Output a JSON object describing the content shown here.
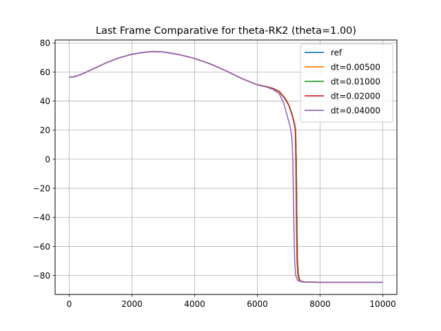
{
  "chart_data": {
    "type": "line",
    "title": "Last Frame Comparative for theta-RK2 (theta=1.00)",
    "xlabel": "",
    "ylabel": "",
    "xlim": [
      -450,
      10450
    ],
    "ylim": [
      -93,
      82
    ],
    "xticks": [
      0,
      2000,
      4000,
      6000,
      8000,
      10000
    ],
    "yticks": [
      -80,
      -60,
      -40,
      -20,
      0,
      20,
      40,
      60,
      80
    ],
    "xtick_labels": [
      "0",
      "2000",
      "4000",
      "6000",
      "8000",
      "10000"
    ],
    "ytick_labels": [
      "−80",
      "−60",
      "−40",
      "−20",
      "0",
      "20",
      "40",
      "60",
      "80"
    ],
    "grid": true,
    "legend_position": "top-right",
    "series": [
      {
        "name": "ref",
        "color": "#1f77b4",
        "points": [
          [
            0,
            56.5
          ],
          [
            150,
            56.6
          ],
          [
            400,
            58.5
          ],
          [
            800,
            62.5
          ],
          [
            1200,
            66.5
          ],
          [
            1600,
            69.8
          ],
          [
            2000,
            72.2
          ],
          [
            2400,
            73.6
          ],
          [
            2700,
            74.1
          ],
          [
            3000,
            73.8
          ],
          [
            3500,
            72.0
          ],
          [
            4000,
            69.3
          ],
          [
            4500,
            65.5
          ],
          [
            5000,
            60.8
          ],
          [
            5500,
            55.5
          ],
          [
            6000,
            51.2
          ],
          [
            6300,
            49.9
          ],
          [
            6500,
            48.7
          ],
          [
            6700,
            46.6
          ],
          [
            6900,
            41.5
          ],
          [
            7000,
            37.5
          ],
          [
            7100,
            31.5
          ],
          [
            7180,
            25.0
          ],
          [
            7220,
            20.0
          ],
          [
            7240,
            0
          ],
          [
            7260,
            -40
          ],
          [
            7280,
            -70
          ],
          [
            7310,
            -80
          ],
          [
            7360,
            -83.5
          ],
          [
            7500,
            -84.5
          ],
          [
            8000,
            -84.6
          ],
          [
            10000,
            -84.6
          ]
        ]
      },
      {
        "name": "dt=0.00500",
        "color": "#ff7f0e",
        "points": [
          [
            0,
            56.5
          ],
          [
            150,
            56.6
          ],
          [
            400,
            58.5
          ],
          [
            800,
            62.5
          ],
          [
            1200,
            66.5
          ],
          [
            1600,
            69.8
          ],
          [
            2000,
            72.2
          ],
          [
            2400,
            73.6
          ],
          [
            2700,
            74.1
          ],
          [
            3000,
            73.8
          ],
          [
            3500,
            72.0
          ],
          [
            4000,
            69.3
          ],
          [
            4500,
            65.5
          ],
          [
            5000,
            60.8
          ],
          [
            5500,
            55.5
          ],
          [
            6000,
            51.2
          ],
          [
            6300,
            49.9
          ],
          [
            6500,
            48.7
          ],
          [
            6700,
            46.6
          ],
          [
            6900,
            41.5
          ],
          [
            7000,
            37.5
          ],
          [
            7100,
            31.5
          ],
          [
            7180,
            25.0
          ],
          [
            7220,
            20.0
          ],
          [
            7240,
            0
          ],
          [
            7260,
            -40
          ],
          [
            7280,
            -70
          ],
          [
            7310,
            -80
          ],
          [
            7360,
            -83.5
          ],
          [
            7500,
            -84.5
          ],
          [
            8000,
            -84.6
          ],
          [
            10000,
            -84.6
          ]
        ]
      },
      {
        "name": "dt=0.01000",
        "color": "#2ca02c",
        "points": [
          [
            0,
            56.5
          ],
          [
            150,
            56.6
          ],
          [
            400,
            58.5
          ],
          [
            800,
            62.5
          ],
          [
            1200,
            66.5
          ],
          [
            1600,
            69.8
          ],
          [
            2000,
            72.2
          ],
          [
            2400,
            73.6
          ],
          [
            2700,
            74.1
          ],
          [
            3000,
            73.8
          ],
          [
            3500,
            72.0
          ],
          [
            4000,
            69.3
          ],
          [
            4500,
            65.5
          ],
          [
            5000,
            60.8
          ],
          [
            5500,
            55.5
          ],
          [
            6000,
            51.2
          ],
          [
            6300,
            49.9
          ],
          [
            6500,
            48.7
          ],
          [
            6700,
            46.6
          ],
          [
            6900,
            41.5
          ],
          [
            7000,
            37.5
          ],
          [
            7100,
            31.5
          ],
          [
            7180,
            25.0
          ],
          [
            7220,
            20.0
          ],
          [
            7240,
            0
          ],
          [
            7260,
            -40
          ],
          [
            7280,
            -70
          ],
          [
            7310,
            -80
          ],
          [
            7360,
            -83.5
          ],
          [
            7500,
            -84.5
          ],
          [
            8000,
            -84.6
          ],
          [
            10000,
            -84.6
          ]
        ]
      },
      {
        "name": "dt=0.02000",
        "color": "#d62728",
        "points": [
          [
            0,
            56.5
          ],
          [
            150,
            56.6
          ],
          [
            400,
            58.5
          ],
          [
            800,
            62.5
          ],
          [
            1200,
            66.5
          ],
          [
            1600,
            69.8
          ],
          [
            2000,
            72.2
          ],
          [
            2400,
            73.6
          ],
          [
            2700,
            74.1
          ],
          [
            3000,
            73.8
          ],
          [
            3500,
            72.0
          ],
          [
            4000,
            69.3
          ],
          [
            4500,
            65.5
          ],
          [
            5000,
            60.8
          ],
          [
            5500,
            55.5
          ],
          [
            6000,
            51.2
          ],
          [
            6300,
            49.9
          ],
          [
            6500,
            48.6
          ],
          [
            6700,
            46.4
          ],
          [
            6900,
            41.0
          ],
          [
            7000,
            37.0
          ],
          [
            7100,
            31.0
          ],
          [
            7170,
            25.0
          ],
          [
            7210,
            20.0
          ],
          [
            7225,
            0
          ],
          [
            7245,
            -40
          ],
          [
            7265,
            -70
          ],
          [
            7295,
            -80
          ],
          [
            7345,
            -83.5
          ],
          [
            7500,
            -84.5
          ],
          [
            8000,
            -84.6
          ],
          [
            10000,
            -84.6
          ]
        ]
      },
      {
        "name": "dt=0.04000",
        "color": "#9467bd",
        "points": [
          [
            0,
            56.5
          ],
          [
            150,
            56.6
          ],
          [
            400,
            58.5
          ],
          [
            800,
            62.5
          ],
          [
            1200,
            66.5
          ],
          [
            1600,
            69.8
          ],
          [
            2000,
            72.2
          ],
          [
            2400,
            73.6
          ],
          [
            2700,
            74.1
          ],
          [
            3000,
            73.8
          ],
          [
            3500,
            72.0
          ],
          [
            4000,
            69.3
          ],
          [
            4500,
            65.5
          ],
          [
            5000,
            60.8
          ],
          [
            5500,
            55.5
          ],
          [
            6000,
            51.1
          ],
          [
            6300,
            49.6
          ],
          [
            6500,
            48.0
          ],
          [
            6700,
            45.0
          ],
          [
            6850,
            38.0
          ],
          [
            6950,
            30.0
          ],
          [
            7050,
            22.0
          ],
          [
            7100,
            15.0
          ],
          [
            7130,
            0
          ],
          [
            7160,
            -40
          ],
          [
            7190,
            -70
          ],
          [
            7220,
            -80
          ],
          [
            7290,
            -83.5
          ],
          [
            7450,
            -84.5
          ],
          [
            8000,
            -84.6
          ],
          [
            10000,
            -84.6
          ]
        ]
      }
    ]
  }
}
